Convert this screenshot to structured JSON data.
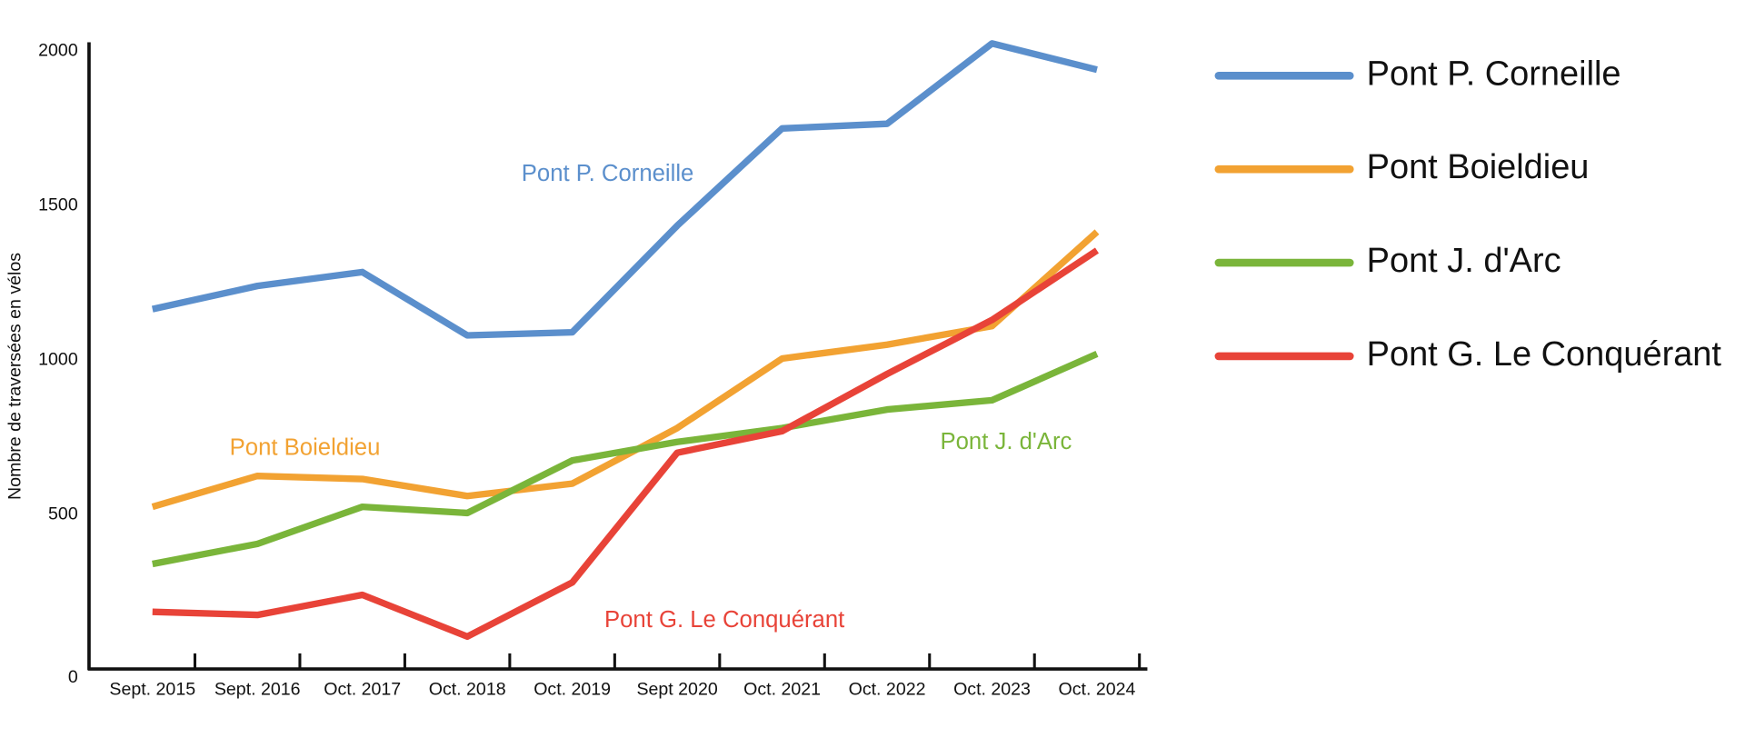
{
  "chart_data": {
    "type": "line",
    "ylabel": "Nombre de traversées en vélos",
    "categories": [
      "Sept. 2015",
      "Sept. 2016",
      "Oct. 2017",
      "Oct. 2018",
      "Oct. 2019",
      "Sept 2020",
      "Oct. 2021",
      "Oct. 2022",
      "Oct. 2023",
      "Oct. 2024"
    ],
    "series": [
      {
        "name": "Pont P. Corneille",
        "color": "#5b8fcc",
        "values": [
          1165,
          1240,
          1285,
          1080,
          1090,
          1435,
          1750,
          1765,
          2025,
          1940
        ]
      },
      {
        "name": "Pont Boieldieu",
        "color": "#f2a232",
        "values": [
          525,
          625,
          615,
          560,
          600,
          780,
          1005,
          1050,
          1110,
          1415
        ]
      },
      {
        "name": "Pont J. d'Arc",
        "color": "#7ab53a",
        "values": [
          340,
          405,
          525,
          505,
          675,
          735,
          780,
          840,
          870,
          1020
        ]
      },
      {
        "name": "Pont G. Le Conquérant",
        "color": "#e84338",
        "values": [
          185,
          175,
          240,
          105,
          280,
          700,
          770,
          955,
          1130,
          1355
        ]
      }
    ],
    "ylim": [
      0,
      2000
    ],
    "yticks": [
      0,
      500,
      1000,
      1500,
      2000
    ],
    "legend": "right"
  }
}
